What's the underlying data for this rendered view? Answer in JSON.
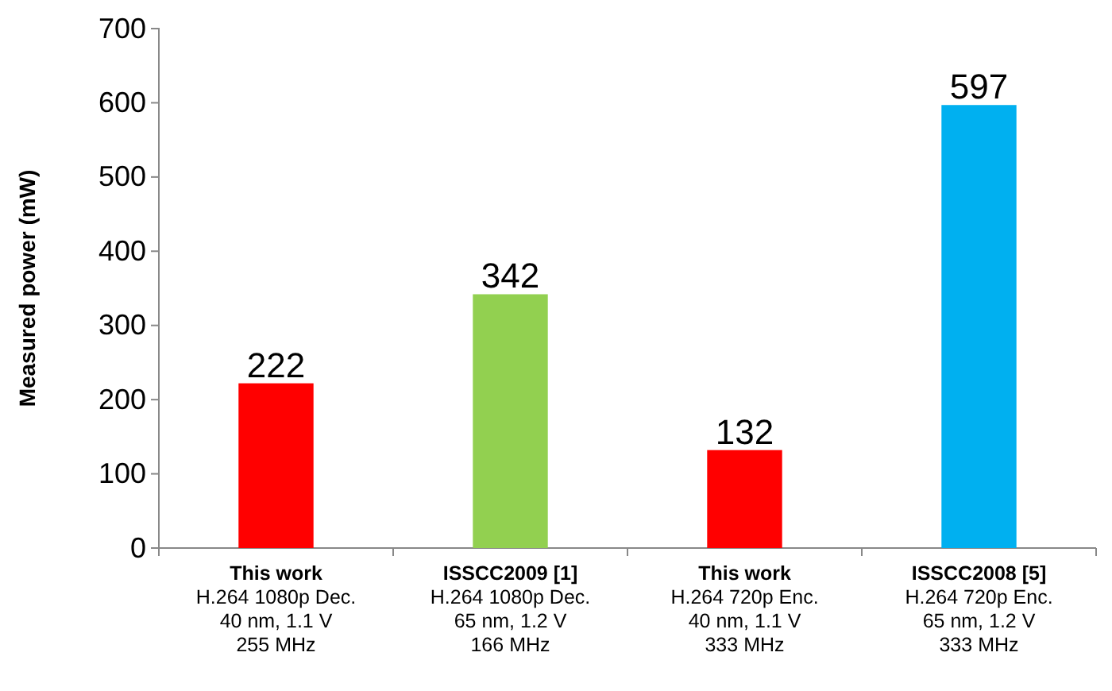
{
  "chart_data": {
    "type": "bar",
    "ylabel": "Measured power (mW)",
    "categories": [
      "This work\nH.264 1080p Dec.\n40 nm, 1.1 V\n255 MHz",
      "ISSCC2009 [1]\nH.264 1080p Dec.\n65 nm, 1.2 V\n166 MHz",
      "This work\nH.264 720p Enc.\n40 nm, 1.1 V\n333 MHz",
      "ISSCC2008 [5]\nH.264 720p Enc.\n65 nm, 1.2 V\n333 MHz"
    ],
    "values": [
      222,
      342,
      132,
      597
    ],
    "colors": [
      "#ff0000",
      "#92d050",
      "#ff0000",
      "#00b0f0"
    ],
    "ylim": [
      0,
      700
    ],
    "yticks": [
      0,
      100,
      200,
      300,
      400,
      500,
      600,
      700
    ],
    "data_labels": true
  }
}
